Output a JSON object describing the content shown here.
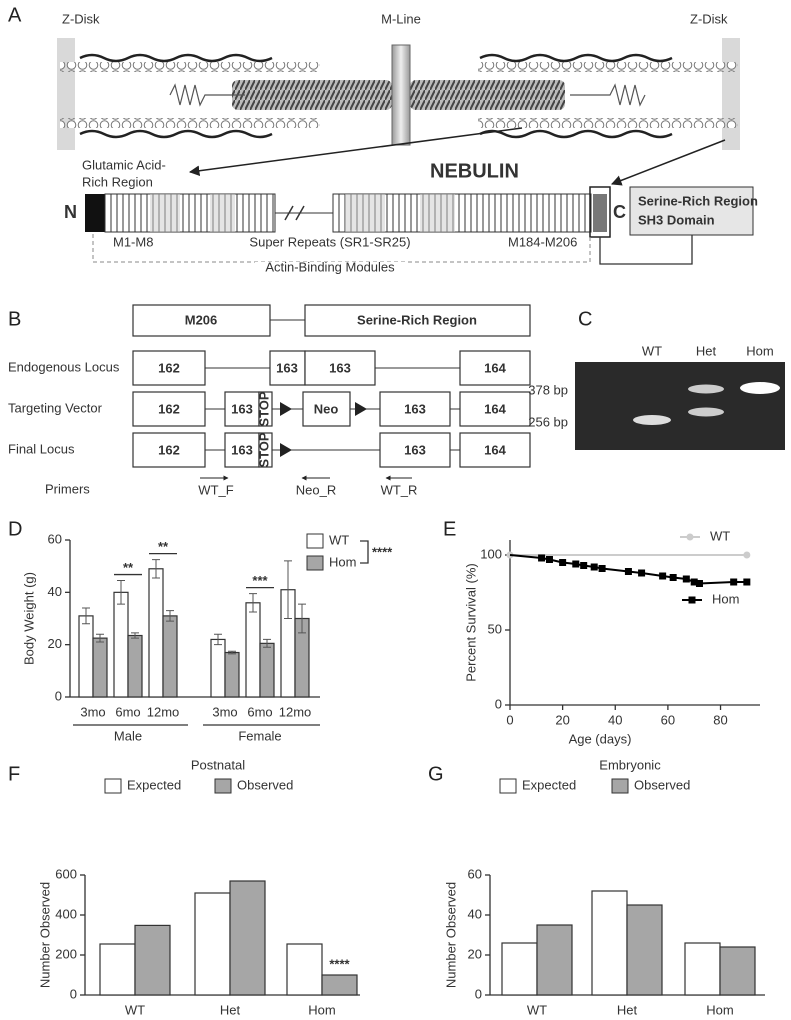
{
  "panels": {
    "A": {
      "label": "A",
      "z_disk_left": "Z-Disk",
      "m_line": "M-Line",
      "z_disk_right": "Z-Disk",
      "glutamic": [
        "Glutamic Acid-",
        "Rich Region"
      ],
      "title": "NEBULIN",
      "n_term": "N",
      "c_term": "C",
      "serine_box": [
        "Serine-Rich Region",
        "SH3 Domain"
      ],
      "m1": "M1-M8",
      "super_repeats": "Super Repeats (SR1-SR25)",
      "m184": "M184-M206",
      "actin_binding": "Actin-Binding Modules"
    },
    "B": {
      "label": "B",
      "top": [
        "M206",
        "Serine-Rich Region"
      ],
      "rows": [
        "Endogenous Locus",
        "Targeting Vector",
        "Final Locus",
        "Primers"
      ],
      "endogenous": [
        "162",
        "163",
        "163",
        "164"
      ],
      "targeting": [
        "162",
        "163",
        "STOP",
        "Neo",
        "163",
        "164"
      ],
      "final": [
        "162",
        "163",
        "STOP",
        "163",
        "164"
      ],
      "primers": [
        "WT_F",
        "Neo_R",
        "WT_R"
      ]
    },
    "C": {
      "label": "C",
      "lanes": [
        "WT",
        "Het",
        "Hom"
      ],
      "sizes": [
        "378 bp",
        "256 bp"
      ]
    }
  },
  "chart_data": [
    {
      "type": "bar",
      "panel_label": "D",
      "y_label": "Body Weight (g)",
      "categories": [
        "3mo",
        "6mo",
        "12mo",
        "3mo",
        "6mo",
        "12mo"
      ],
      "groups": [
        "Male",
        "Female"
      ],
      "series": [
        {
          "name": "WT",
          "color": "#ffffff",
          "values": [
            31,
            40,
            49,
            22,
            36,
            41
          ],
          "errors": [
            3,
            4.5,
            3.5,
            2,
            3.5,
            11
          ]
        },
        {
          "name": "Hom",
          "color": "#a6a6a6",
          "values": [
            22.5,
            23.5,
            31,
            17,
            20.5,
            30
          ],
          "errors": [
            1.5,
            1,
            2,
            0.5,
            1.5,
            5.5
          ]
        }
      ],
      "ylim": [
        0,
        60
      ],
      "yticks": [
        0,
        20,
        40,
        60
      ],
      "significance": [
        "**",
        "**",
        "***"
      ],
      "overall_significance": "****"
    },
    {
      "type": "line",
      "panel_label": "E",
      "x_label": "Age (days)",
      "y_label": "Percent Survival (%)",
      "series": [
        {
          "name": "WT",
          "color": "#cccccc",
          "x": [
            0,
            90
          ],
          "values": [
            100,
            100
          ]
        },
        {
          "name": "Hom",
          "color": "#000000",
          "x": [
            0,
            12,
            15,
            20,
            25,
            28,
            32,
            35,
            45,
            50,
            58,
            62,
            67,
            70,
            72,
            85,
            90
          ],
          "values": [
            100,
            98,
            97,
            95,
            94,
            93,
            92,
            91,
            89,
            88,
            86,
            85,
            84,
            82,
            81,
            82,
            82
          ]
        }
      ],
      "xlim": [
        0,
        95
      ],
      "xticks": [
        0,
        20,
        40,
        60,
        80
      ],
      "ylim": [
        0,
        110
      ],
      "yticks": [
        0,
        50,
        100
      ]
    },
    {
      "type": "bar",
      "panel_label": "F",
      "title": "Postnatal",
      "y_label": "Number Observed",
      "categories": [
        "WT",
        "Het",
        "Hom"
      ],
      "series": [
        {
          "name": "Expected",
          "color": "#ffffff",
          "values": [
            255,
            510,
            255
          ]
        },
        {
          "name": "Observed",
          "color": "#a6a6a6",
          "values": [
            348,
            570,
            100
          ]
        }
      ],
      "ylim": [
        0,
        600
      ],
      "yticks": [
        0,
        200,
        400,
        600
      ],
      "annotations": [
        "****"
      ]
    },
    {
      "type": "bar",
      "panel_label": "G",
      "title": "Embryonic",
      "y_label": "Number Observed",
      "categories": [
        "WT",
        "Het",
        "Hom"
      ],
      "series": [
        {
          "name": "Expected",
          "color": "#ffffff",
          "values": [
            26,
            52,
            26
          ]
        },
        {
          "name": "Observed",
          "color": "#a6a6a6",
          "values": [
            35,
            45,
            24
          ]
        }
      ],
      "ylim": [
        0,
        60
      ],
      "yticks": [
        0,
        20,
        40,
        60
      ]
    }
  ]
}
